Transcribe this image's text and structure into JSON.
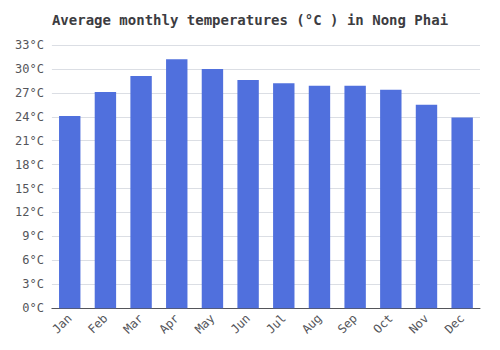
{
  "chart_data": {
    "type": "bar",
    "title": "Average monthly temperatures (°C ) in Nong Phai",
    "categories": [
      "Jan",
      "Feb",
      "Mar",
      "Apr",
      "May",
      "Jun",
      "Jul",
      "Aug",
      "Sep",
      "Oct",
      "Nov",
      "Dec"
    ],
    "values": [
      24.1,
      27.1,
      29.1,
      31.2,
      30.0,
      28.6,
      28.2,
      27.9,
      27.9,
      27.4,
      25.5,
      23.9
    ],
    "ylim": [
      0,
      33
    ],
    "yticks": [
      {
        "value": 0,
        "label": "0°C"
      },
      {
        "value": 3,
        "label": "3°C"
      },
      {
        "value": 6,
        "label": "6°C"
      },
      {
        "value": 9,
        "label": "9°C"
      },
      {
        "value": 12,
        "label": "12°C"
      },
      {
        "value": 15,
        "label": "15°C"
      },
      {
        "value": 18,
        "label": "18°C"
      },
      {
        "value": 21,
        "label": "21°C"
      },
      {
        "value": 24,
        "label": "24°C"
      },
      {
        "value": 27,
        "label": "27°C"
      },
      {
        "value": 30,
        "label": "30°C"
      },
      {
        "value": 33,
        "label": "33°C"
      }
    ],
    "grid": true
  }
}
